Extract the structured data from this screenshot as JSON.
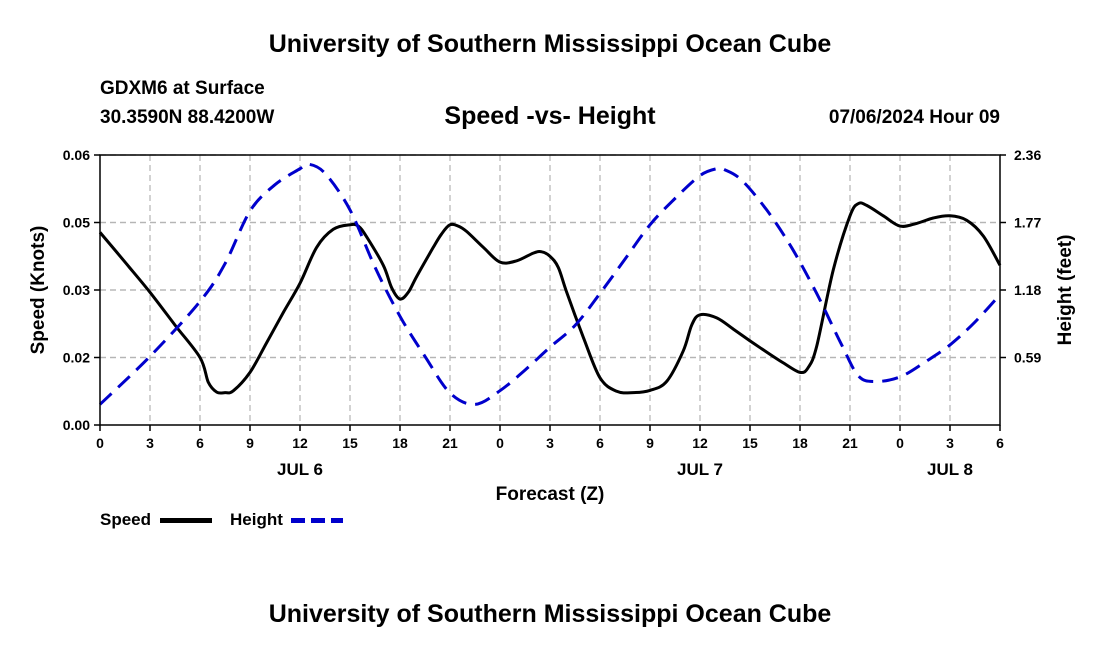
{
  "header": {
    "title": "University of Southern Mississippi Ocean Cube",
    "station": "GDXM6 at Surface",
    "coords": "30.3590N  88.4200W",
    "subtitle": "Speed -vs- Height",
    "datetime": "07/06/2024 Hour 09"
  },
  "footer": {
    "title": "University of Southern Mississippi Ocean Cube"
  },
  "legend": {
    "speed_label": "Speed",
    "height_label": "Height",
    "speed_color": "#000000",
    "height_color": "#0000cc"
  },
  "chart_data": {
    "type": "line",
    "title": "Speed -vs- Height",
    "xlabel": "Forecast (Z)",
    "ylabel": "Speed (Knots)",
    "y2label": "Height (feet)",
    "grid": true,
    "xlim": [
      0,
      54
    ],
    "ylim": [
      0,
      0.06
    ],
    "y2lim": [
      0,
      2.36
    ],
    "x_ticks": [
      0,
      3,
      6,
      9,
      12,
      15,
      18,
      21,
      24,
      27,
      30,
      33,
      36,
      39,
      42,
      45,
      48,
      51,
      54
    ],
    "x_tick_labels": [
      "0",
      "3",
      "6",
      "9",
      "12",
      "15",
      "18",
      "21",
      "0",
      "3",
      "6",
      "9",
      "12",
      "15",
      "18",
      "21",
      "0",
      "3",
      "6"
    ],
    "date_labels": [
      {
        "x": 12,
        "label": "JUL 6"
      },
      {
        "x": 36,
        "label": "JUL 7"
      },
      {
        "x": 51,
        "label": "JUL 8"
      }
    ],
    "y_ticks": [
      0,
      0.015,
      0.03,
      0.045,
      0.06
    ],
    "y_tick_labels": [
      "0.00",
      "0.02",
      "0.03",
      "0.05",
      "0.06"
    ],
    "y2_ticks": [
      0.59,
      1.18,
      1.77,
      2.36
    ],
    "y2_tick_labels": [
      "0.59",
      "1.18",
      "1.77",
      "2.36"
    ],
    "series": [
      {
        "name": "Speed",
        "axis": "left",
        "color": "#000000",
        "dash": "solid",
        "x": [
          0,
          1.5,
          3,
          4.5,
          6,
          6.5,
          7,
          7.5,
          8,
          9,
          10,
          11,
          12,
          13,
          14,
          15,
          15.5,
          16,
          17,
          17.5,
          18,
          18.5,
          19,
          20,
          20.5,
          21,
          21.5,
          22,
          23,
          24,
          25,
          26,
          26.5,
          27,
          27.5,
          28,
          29,
          30,
          31,
          32,
          33,
          34,
          35,
          35.5,
          36,
          37,
          38,
          39,
          40,
          41,
          42,
          42.5,
          43,
          44,
          45,
          45.5,
          46,
          47,
          48,
          49,
          50,
          51,
          52,
          53,
          54
        ],
        "y": [
          0.0428,
          0.0362,
          0.0295,
          0.0222,
          0.015,
          0.0095,
          0.0073,
          0.0072,
          0.0076,
          0.0117,
          0.0183,
          0.025,
          0.0315,
          0.0395,
          0.0435,
          0.0445,
          0.0442,
          0.0418,
          0.0355,
          0.0305,
          0.028,
          0.0295,
          0.033,
          0.0395,
          0.0425,
          0.0445,
          0.0442,
          0.043,
          0.0395,
          0.0362,
          0.0365,
          0.0382,
          0.0385,
          0.0375,
          0.035,
          0.0295,
          0.0195,
          0.0105,
          0.0075,
          0.0072,
          0.0077,
          0.0097,
          0.0165,
          0.0222,
          0.0245,
          0.0238,
          0.0213,
          0.0187,
          0.0162,
          0.0138,
          0.0117,
          0.0128,
          0.0175,
          0.0345,
          0.0465,
          0.0492,
          0.0488,
          0.0465,
          0.0442,
          0.0448,
          0.046,
          0.0465,
          0.0455,
          0.042,
          0.0355
        ]
      },
      {
        "name": "Height",
        "axis": "right",
        "color": "#0000cc",
        "dash": "dashed",
        "x": [
          0,
          3,
          6,
          7.5,
          9,
          10.5,
          12,
          12.5,
          13.5,
          15,
          16.5,
          18,
          19.5,
          21,
          22.5,
          24,
          25.5,
          27,
          28.5,
          30,
          31.5,
          33,
          34.5,
          36,
          37,
          37.5,
          38.5,
          40,
          41.5,
          43,
          44.5,
          45.5,
          46.5,
          48,
          49.5,
          51,
          52.5,
          54
        ],
        "y": [
          0.18,
          0.6,
          1.08,
          1.41,
          1.87,
          2.1,
          2.24,
          2.28,
          2.2,
          1.88,
          1.38,
          0.95,
          0.6,
          0.28,
          0.18,
          0.3,
          0.48,
          0.68,
          0.87,
          1.15,
          1.45,
          1.75,
          1.98,
          2.18,
          2.24,
          2.23,
          2.14,
          1.88,
          1.55,
          1.15,
          0.7,
          0.43,
          0.38,
          0.42,
          0.55,
          0.7,
          0.9,
          1.14
        ]
      }
    ]
  }
}
